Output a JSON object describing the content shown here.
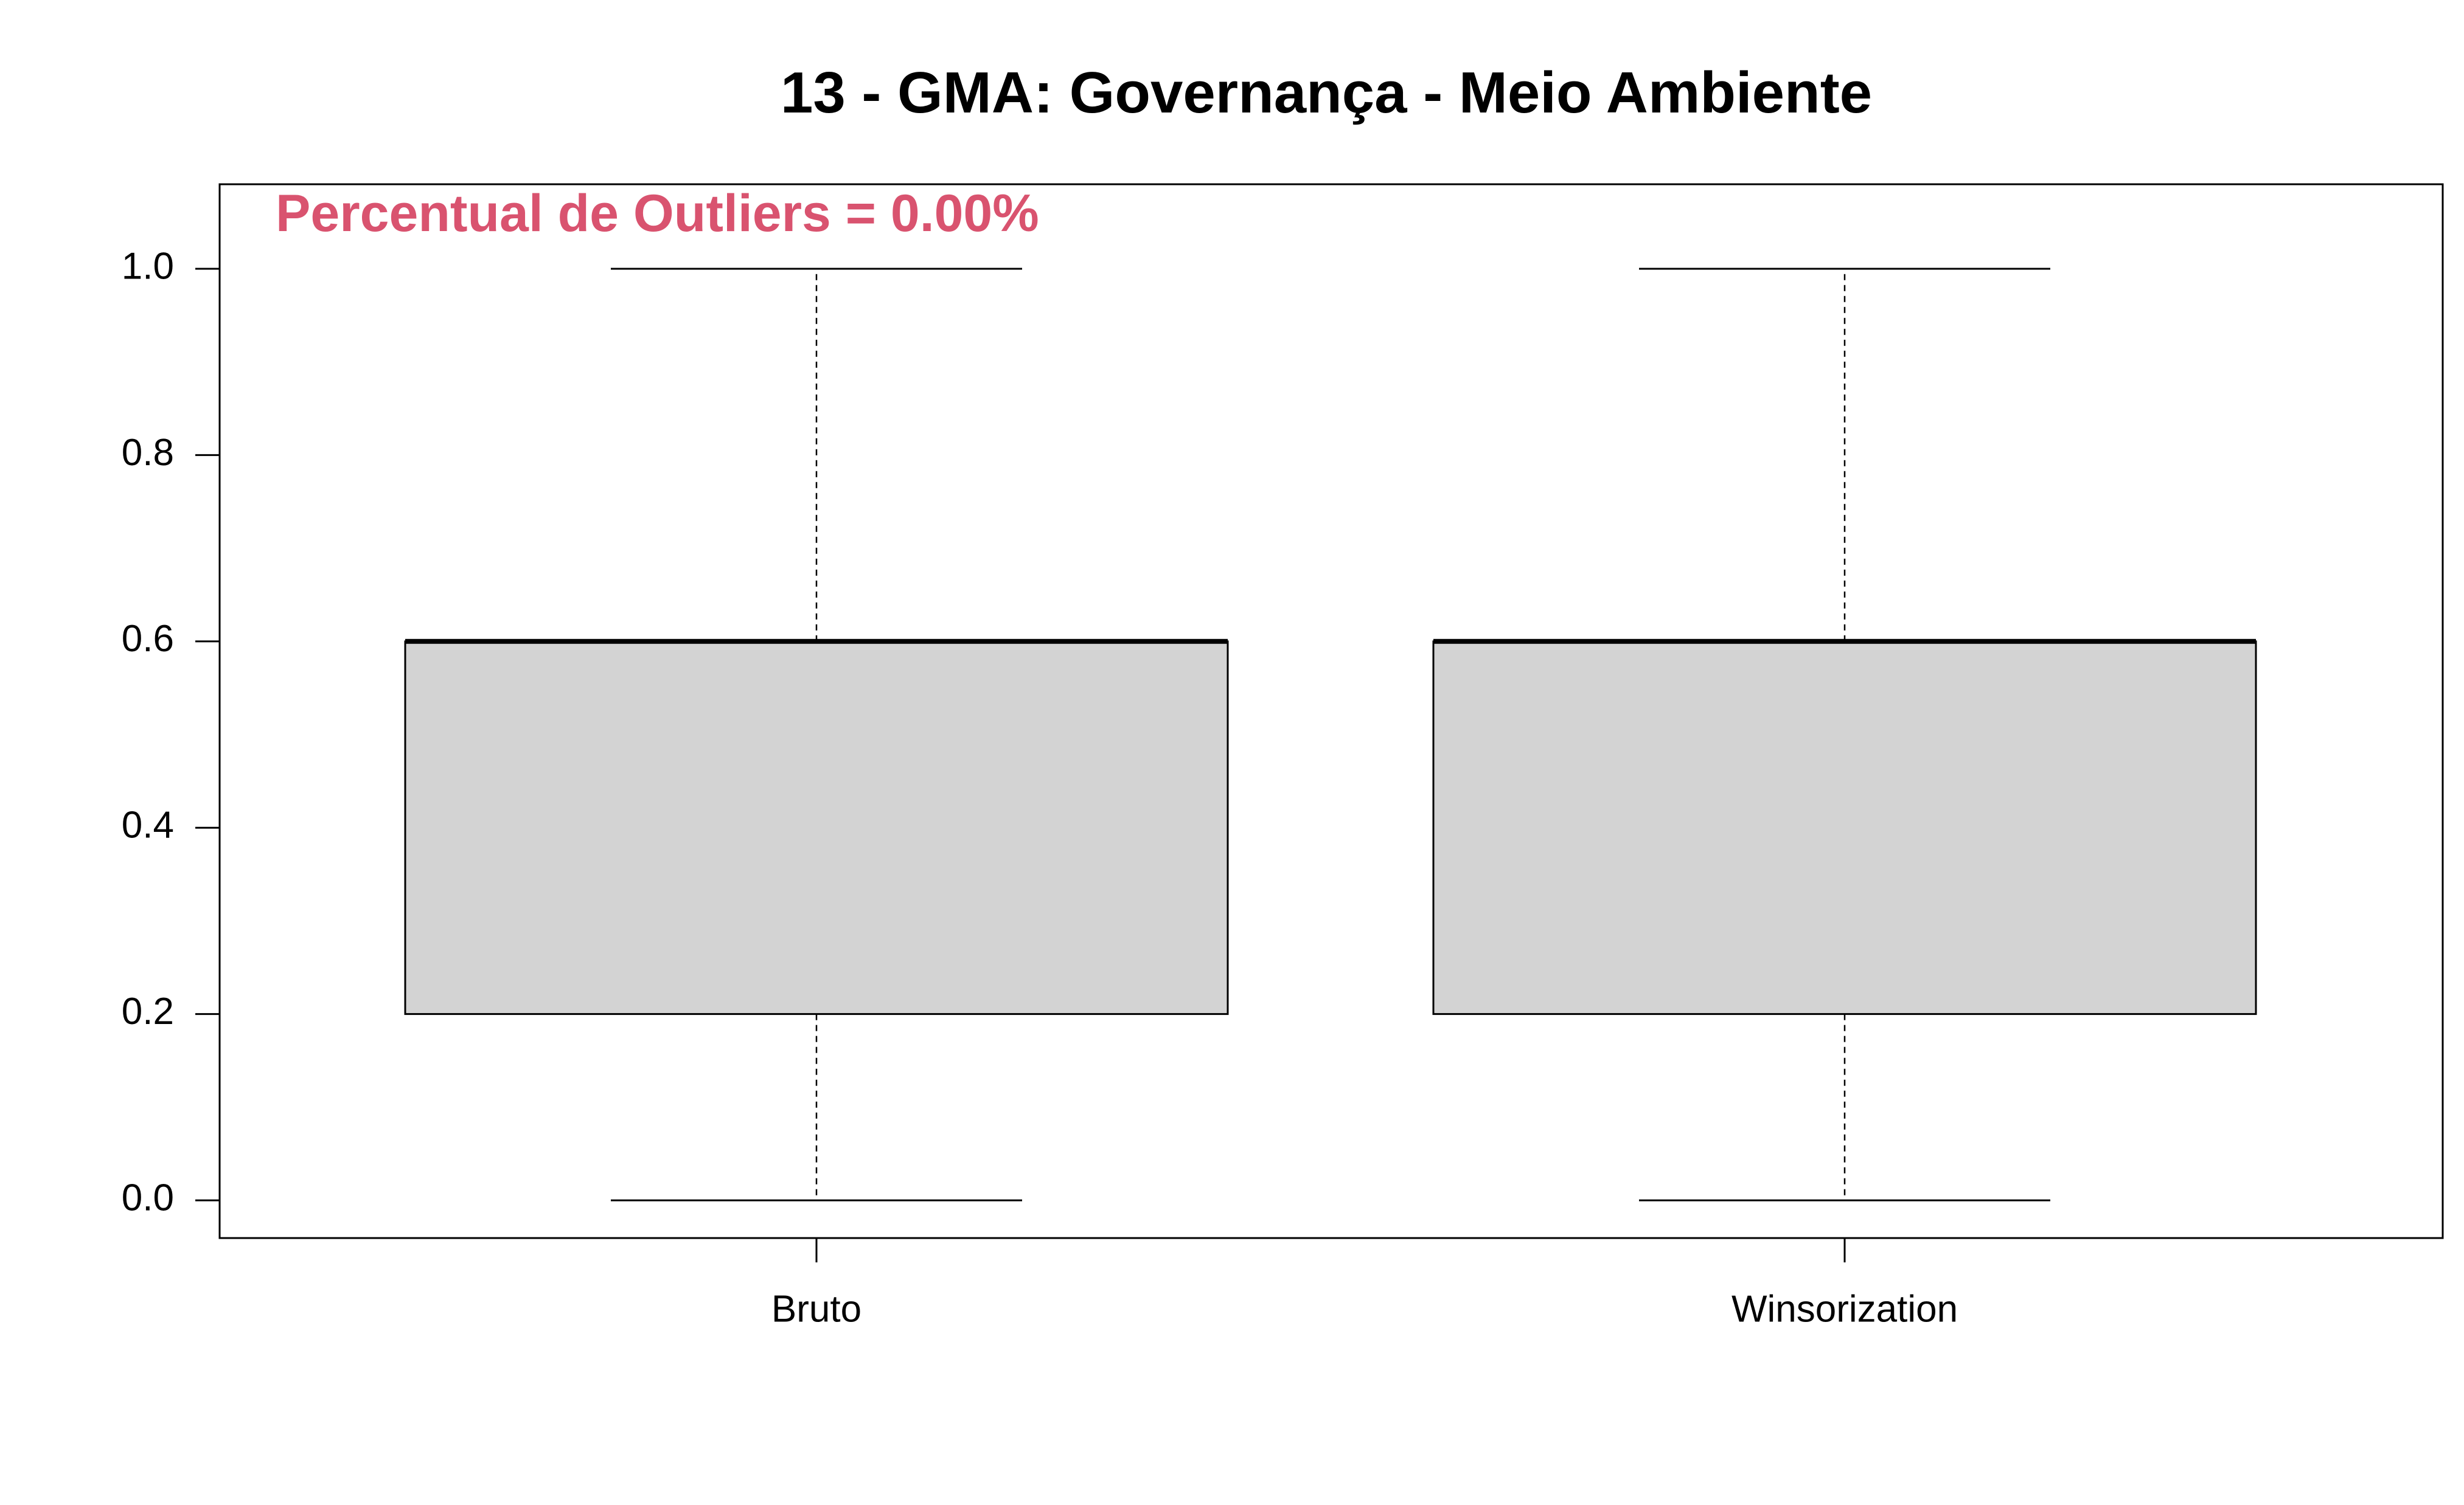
{
  "chart_data": {
    "type": "boxplot",
    "title": "13 - GMA: Governança - Meio Ambiente",
    "annotation": "Percentual de Outliers = 0.00%",
    "annotation_color": "#d9536f",
    "box_fill": "#d3d3d3",
    "xlabel": "",
    "ylabel": "",
    "categories": [
      "Bruto",
      "Winsorization"
    ],
    "boxes": [
      {
        "category": "Bruto",
        "whisker_low": 0.0,
        "q1": 0.2,
        "median": 0.6,
        "q3": 0.6,
        "whisker_high": 1.0
      },
      {
        "category": "Winsorization",
        "whisker_low": 0.0,
        "q1": 0.2,
        "median": 0.6,
        "q3": 0.6,
        "whisker_high": 1.0
      }
    ],
    "y_ticks": [
      "0.0",
      "0.2",
      "0.4",
      "0.6",
      "0.8",
      "1.0"
    ],
    "y_tick_values": [
      0.0,
      0.2,
      0.4,
      0.6,
      0.8,
      1.0
    ],
    "ylim": [
      -0.04,
      1.09
    ],
    "grid": false,
    "legend": "none"
  }
}
